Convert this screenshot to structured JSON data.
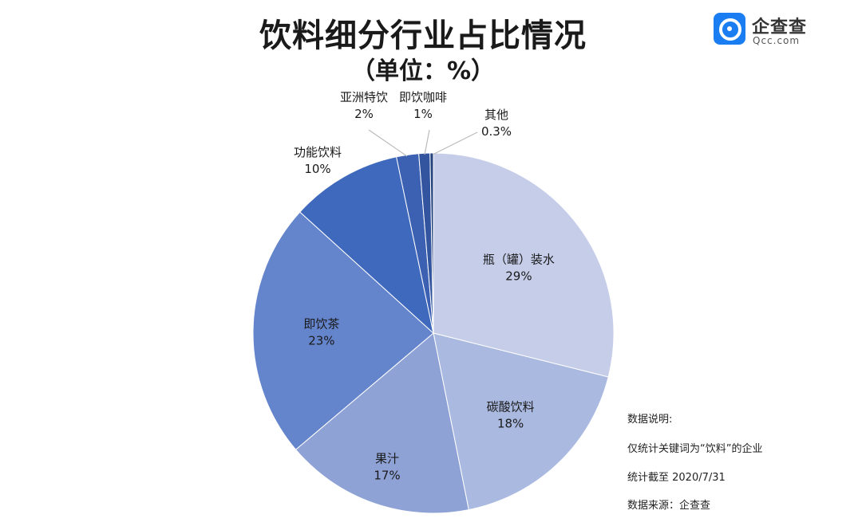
{
  "title": "饮料细分行业占比情况",
  "subtitle": "（单位：%）",
  "logo": {
    "name": "企查查",
    "domain": "Qcc.com"
  },
  "notes": {
    "heading": "数据说明:",
    "scope": "仅统计关键词为“饮料”的企业",
    "cutoff": "统计截至 2020/7/31",
    "source": "数据来源：企查查"
  },
  "chart_data": {
    "type": "pie",
    "title": "饮料细分行业占比情况",
    "subtitle": "（单位：%）",
    "start": "12 o'clock",
    "direction": "clockwise",
    "slices": [
      {
        "label": "瓶（罐）装水",
        "value": 29,
        "value_label": "29%",
        "color": "#c5cde9"
      },
      {
        "label": "碳酸饮料",
        "value": 18,
        "value_label": "18%",
        "color": "#aab9e0"
      },
      {
        "label": "果汁",
        "value": 17,
        "value_label": "17%",
        "color": "#8ea2d6"
      },
      {
        "label": "即饮茶",
        "value": 23,
        "value_label": "23%",
        "color": "#6484cc"
      },
      {
        "label": "功能饮料",
        "value": 10,
        "value_label": "10%",
        "color": "#3f69bd"
      },
      {
        "label": "亚洲特饮",
        "value": 2,
        "value_label": "2%",
        "color": "#3c61b2"
      },
      {
        "label": "即饮咖啡",
        "value": 1,
        "value_label": "1%",
        "color": "#33559f"
      },
      {
        "label": "其他",
        "value": 0.3,
        "value_label": "0.3%",
        "color": "#24427e"
      }
    ]
  }
}
